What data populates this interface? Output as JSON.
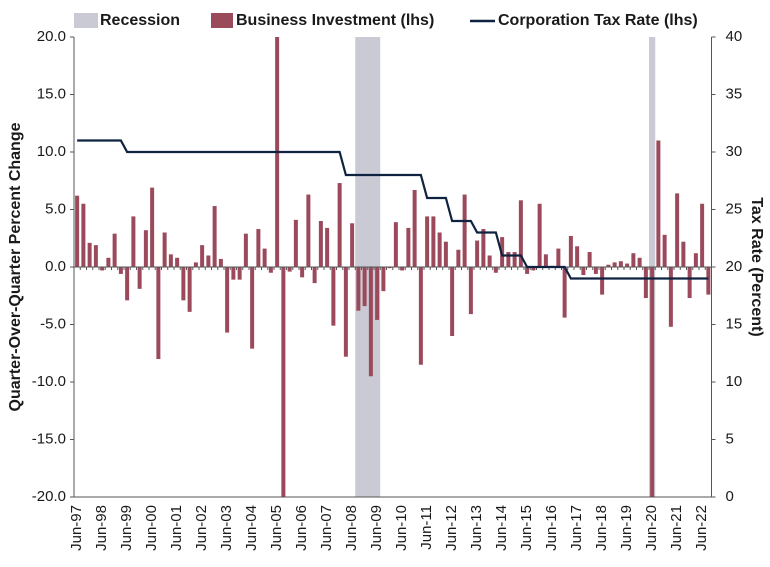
{
  "chart_data": {
    "type": "bar",
    "y_label": "Quarter-Over-Quarter Percent Change",
    "y2_label": "Tax Rate (Percent)",
    "categories": [
      "Jun-97",
      null,
      null,
      null,
      "Jun-98",
      null,
      null,
      null,
      "Jun-99",
      null,
      null,
      null,
      "Jun-00",
      null,
      null,
      null,
      "Jun-01",
      null,
      null,
      null,
      "Jun-02",
      null,
      null,
      null,
      "Jun-03",
      null,
      null,
      null,
      "Jun-04",
      null,
      null,
      null,
      "Jun-05",
      null,
      null,
      null,
      "Jun-06",
      null,
      null,
      null,
      "Jun-07",
      null,
      null,
      null,
      "Jun-08",
      null,
      null,
      null,
      "Jun-09",
      null,
      null,
      null,
      "Jun-10",
      null,
      null,
      null,
      "Jun-11",
      null,
      null,
      null,
      "Jun-12",
      null,
      null,
      null,
      "Jun-13",
      null,
      null,
      null,
      "Jun-14",
      null,
      null,
      null,
      "Jun-15",
      null,
      null,
      null,
      "Jun-16",
      null,
      null,
      null,
      "Jun-17",
      null,
      null,
      null,
      "Jun-18",
      null,
      null,
      null,
      "Jun-19",
      null,
      null,
      null,
      "Jun-20",
      null,
      null,
      null,
      "Jun-21",
      null,
      null,
      null,
      "Jun-22",
      null
    ],
    "recession": {
      "name": "Recession",
      "color": "#c9cad4",
      "spans": [
        [
          45,
          48
        ],
        [
          92,
          92
        ]
      ]
    },
    "series": [
      {
        "name": "Business Investment (lhs)",
        "color": "#9b4a5b",
        "values": [
          6.2,
          5.5,
          2.1,
          1.9,
          -0.3,
          0.8,
          2.9,
          -0.6,
          -2.9,
          4.4,
          -1.9,
          3.2,
          6.9,
          -8.0,
          3.0,
          1.1,
          0.8,
          -2.9,
          -3.9,
          0.4,
          1.9,
          1.0,
          5.3,
          0.7,
          -5.7,
          -1.1,
          -1.1,
          2.9,
          -7.1,
          3.3,
          1.6,
          -0.5,
          20,
          -20,
          -0.4,
          4.1,
          -0.9,
          6.3,
          -1.4,
          4.0,
          3.4,
          -5.1,
          7.3,
          -7.8,
          3.8,
          -3.8,
          -3.4,
          -9.5,
          -4.6,
          -2.1,
          -0.1,
          3.9,
          -0.3,
          3.4,
          6.7,
          -8.5,
          4.4,
          4.4,
          3.0,
          2.2,
          -6.0,
          1.5,
          6.3,
          -4.1,
          2.3,
          3.3,
          1.0,
          -0.5,
          2.6,
          1.3,
          1.3,
          5.8,
          -0.6,
          -0.3,
          5.5,
          1.1,
          0.1,
          1.6,
          -4.4,
          2.7,
          1.8,
          -0.7,
          1.3,
          -0.6,
          -2.4,
          0.2,
          0.4,
          0.5,
          0.3,
          1.2,
          0.8,
          -2.7,
          -20,
          11.0,
          2.8,
          -5.2,
          6.4,
          2.2,
          -2.7,
          1.2,
          5.5,
          -2.4
        ]
      },
      {
        "name": "Corporation Tax Rate (lhs)",
        "color": "#0f2340",
        "axis": "y2",
        "type": "line",
        "values": [
          31,
          31,
          31,
          31,
          31,
          31,
          31,
          31,
          30,
          30,
          30,
          30,
          30,
          30,
          30,
          30,
          30,
          30,
          30,
          30,
          30,
          30,
          30,
          30,
          30,
          30,
          30,
          30,
          30,
          30,
          30,
          30,
          30,
          30,
          30,
          30,
          30,
          30,
          30,
          30,
          30,
          30,
          30,
          28,
          28,
          28,
          28,
          28,
          28,
          28,
          28,
          28,
          28,
          28,
          28,
          28,
          26,
          26,
          26,
          26,
          24,
          24,
          24,
          24,
          23,
          23,
          23,
          23,
          21,
          21,
          21,
          21,
          20,
          20,
          20,
          20,
          20,
          20,
          20,
          19,
          19,
          19,
          19,
          19,
          19,
          19,
          19,
          19,
          19,
          19,
          19,
          19,
          19,
          19,
          19,
          19,
          19,
          19,
          19,
          19,
          19,
          19
        ]
      }
    ],
    "ylim": [
      -20,
      20
    ],
    "yticks": [
      {
        "value": -20,
        "label": "-20.0"
      },
      {
        "value": -15,
        "label": "-15.0"
      },
      {
        "value": -10,
        "label": "-10.0"
      },
      {
        "value": -5,
        "label": "-5.0"
      },
      {
        "value": 0,
        "label": "0.0"
      },
      {
        "value": 5,
        "label": "5.0"
      },
      {
        "value": 10,
        "label": "10.0"
      },
      {
        "value": 15,
        "label": "15.0"
      },
      {
        "value": 20,
        "label": "20.0"
      }
    ],
    "y2lim": [
      0,
      40
    ],
    "y2ticks": [
      0,
      5,
      10,
      15,
      20,
      25,
      30,
      35,
      40
    ],
    "grid": false
  }
}
